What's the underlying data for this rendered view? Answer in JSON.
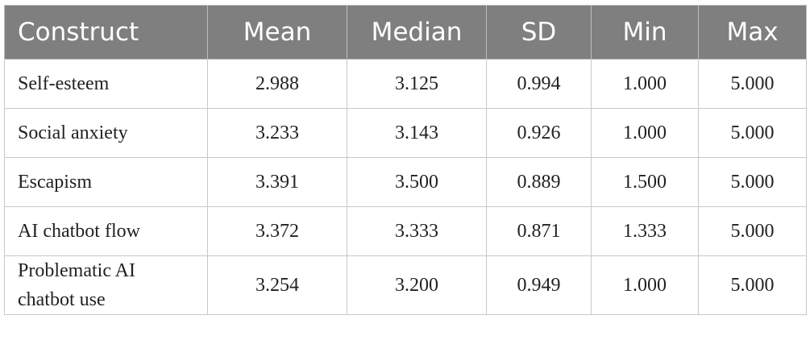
{
  "table": {
    "header": [
      "Construct",
      "Mean",
      "Median",
      "SD",
      "Min",
      "Max"
    ],
    "rows": [
      [
        "Self-esteem",
        "2.988",
        "3.125",
        "0.994",
        "1.000",
        "5.000"
      ],
      [
        "Social anxiety",
        "3.233",
        "3.143",
        "0.926",
        "1.000",
        "5.000"
      ],
      [
        "Escapism",
        "3.391",
        "3.500",
        "0.889",
        "1.500",
        "5.000"
      ],
      [
        "AI chatbot flow",
        "3.372",
        "3.333",
        "0.871",
        "1.333",
        "5.000"
      ],
      [
        "Problematic AI chatbot use",
        "3.254",
        "3.200",
        "0.949",
        "1.000",
        "5.000"
      ]
    ]
  }
}
